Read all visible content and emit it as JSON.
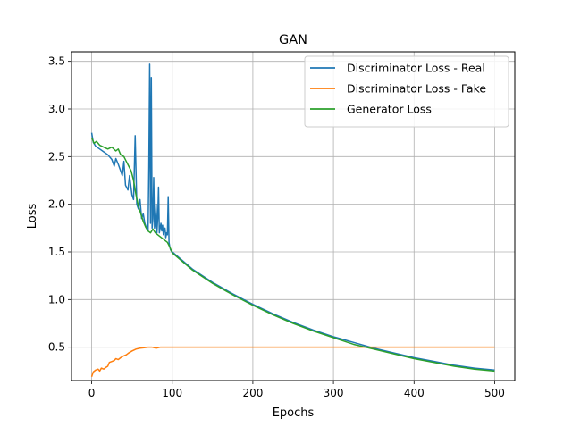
{
  "chart_data": {
    "type": "line",
    "title": "GAN",
    "xlabel": "Epochs",
    "ylabel": "Loss",
    "xlim": [
      -25,
      525
    ],
    "ylim": [
      0.15,
      3.6
    ],
    "xticks": [
      0,
      100,
      200,
      300,
      400,
      500
    ],
    "yticks": [
      0.5,
      1.0,
      1.5,
      2.0,
      2.5,
      3.0,
      3.5
    ],
    "grid": true,
    "legend_position": "top-right",
    "series": [
      {
        "name": "Discriminator Loss - Real",
        "color": "#1f77b4",
        "points": [
          [
            0,
            2.75
          ],
          [
            2,
            2.65
          ],
          [
            5,
            2.61
          ],
          [
            10,
            2.58
          ],
          [
            15,
            2.55
          ],
          [
            20,
            2.52
          ],
          [
            25,
            2.47
          ],
          [
            28,
            2.4
          ],
          [
            30,
            2.48
          ],
          [
            33,
            2.42
          ],
          [
            36,
            2.35
          ],
          [
            38,
            2.3
          ],
          [
            40,
            2.45
          ],
          [
            42,
            2.2
          ],
          [
            45,
            2.15
          ],
          [
            47,
            2.3
          ],
          [
            50,
            2.1
          ],
          [
            52,
            2.05
          ],
          [
            54,
            2.72
          ],
          [
            56,
            2.0
          ],
          [
            58,
            1.95
          ],
          [
            60,
            2.05
          ],
          [
            62,
            1.85
          ],
          [
            64,
            1.9
          ],
          [
            66,
            1.8
          ],
          [
            68,
            1.75
          ],
          [
            70,
            1.72
          ],
          [
            71,
            2.4
          ],
          [
            72,
            3.47
          ],
          [
            73,
            1.8
          ],
          [
            74,
            3.33
          ],
          [
            75,
            1.75
          ],
          [
            76,
            1.85
          ],
          [
            77,
            2.28
          ],
          [
            78,
            1.75
          ],
          [
            79,
            1.8
          ],
          [
            80,
            2.0
          ],
          [
            81,
            1.7
          ],
          [
            82,
            1.85
          ],
          [
            83,
            2.18
          ],
          [
            84,
            1.7
          ],
          [
            85,
            1.75
          ],
          [
            86,
            1.8
          ],
          [
            87,
            1.72
          ],
          [
            88,
            1.78
          ],
          [
            89,
            1.68
          ],
          [
            90,
            1.72
          ],
          [
            91,
            1.75
          ],
          [
            92,
            1.65
          ],
          [
            93,
            1.7
          ],
          [
            94,
            1.68
          ],
          [
            95,
            2.08
          ],
          [
            96,
            1.6
          ],
          [
            97,
            1.55
          ],
          [
            98,
            1.52
          ],
          [
            100,
            1.5
          ],
          [
            125,
            1.32
          ],
          [
            150,
            1.18
          ],
          [
            175,
            1.06
          ],
          [
            200,
            0.95
          ],
          [
            225,
            0.85
          ],
          [
            250,
            0.76
          ],
          [
            275,
            0.68
          ],
          [
            300,
            0.61
          ],
          [
            325,
            0.55
          ],
          [
            350,
            0.49
          ],
          [
            375,
            0.44
          ],
          [
            400,
            0.39
          ],
          [
            425,
            0.35
          ],
          [
            450,
            0.31
          ],
          [
            475,
            0.28
          ],
          [
            500,
            0.26
          ]
        ]
      },
      {
        "name": "Discriminator Loss - Fake",
        "color": "#ff7f0e",
        "points": [
          [
            0,
            0.19
          ],
          [
            2,
            0.24
          ],
          [
            5,
            0.26
          ],
          [
            8,
            0.27
          ],
          [
            10,
            0.25
          ],
          [
            12,
            0.28
          ],
          [
            15,
            0.27
          ],
          [
            18,
            0.29
          ],
          [
            20,
            0.3
          ],
          [
            22,
            0.34
          ],
          [
            25,
            0.35
          ],
          [
            28,
            0.36
          ],
          [
            30,
            0.38
          ],
          [
            33,
            0.37
          ],
          [
            36,
            0.39
          ],
          [
            40,
            0.41
          ],
          [
            43,
            0.42
          ],
          [
            46,
            0.44
          ],
          [
            50,
            0.46
          ],
          [
            55,
            0.48
          ],
          [
            60,
            0.49
          ],
          [
            65,
            0.495
          ],
          [
            70,
            0.5
          ],
          [
            75,
            0.5
          ],
          [
            80,
            0.49
          ],
          [
            85,
            0.5
          ],
          [
            100,
            0.5
          ],
          [
            150,
            0.5
          ],
          [
            200,
            0.5
          ],
          [
            250,
            0.5
          ],
          [
            300,
            0.5
          ],
          [
            350,
            0.5
          ],
          [
            400,
            0.5
          ],
          [
            450,
            0.5
          ],
          [
            500,
            0.5
          ]
        ]
      },
      {
        "name": "Generator Loss",
        "color": "#2ca02c",
        "points": [
          [
            0,
            2.7
          ],
          [
            3,
            2.64
          ],
          [
            6,
            2.66
          ],
          [
            10,
            2.62
          ],
          [
            15,
            2.6
          ],
          [
            20,
            2.58
          ],
          [
            25,
            2.6
          ],
          [
            30,
            2.56
          ],
          [
            33,
            2.58
          ],
          [
            36,
            2.52
          ],
          [
            40,
            2.5
          ],
          [
            43,
            2.45
          ],
          [
            46,
            2.4
          ],
          [
            49,
            2.35
          ],
          [
            52,
            2.25
          ],
          [
            55,
            2.1
          ],
          [
            58,
            1.98
          ],
          [
            61,
            1.9
          ],
          [
            64,
            1.82
          ],
          [
            67,
            1.76
          ],
          [
            70,
            1.72
          ],
          [
            73,
            1.7
          ],
          [
            76,
            1.74
          ],
          [
            79,
            1.7
          ],
          [
            82,
            1.68
          ],
          [
            85,
            1.66
          ],
          [
            88,
            1.64
          ],
          [
            91,
            1.62
          ],
          [
            94,
            1.6
          ],
          [
            97,
            1.55
          ],
          [
            100,
            1.49
          ],
          [
            125,
            1.31
          ],
          [
            150,
            1.17
          ],
          [
            175,
            1.05
          ],
          [
            200,
            0.94
          ],
          [
            225,
            0.84
          ],
          [
            250,
            0.75
          ],
          [
            275,
            0.67
          ],
          [
            300,
            0.6
          ],
          [
            325,
            0.53
          ],
          [
            350,
            0.48
          ],
          [
            375,
            0.43
          ],
          [
            400,
            0.38
          ],
          [
            425,
            0.34
          ],
          [
            450,
            0.3
          ],
          [
            475,
            0.27
          ],
          [
            500,
            0.25
          ]
        ]
      }
    ]
  }
}
